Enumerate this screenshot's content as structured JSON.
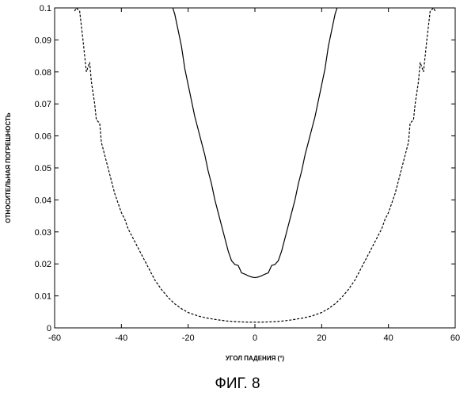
{
  "figure": {
    "caption": "ФИГ. 8"
  },
  "chart_data": {
    "type": "line",
    "title": "",
    "xlabel": "УГОЛ ПАДЕНИЯ (°)",
    "ylabel": "ОТНОСИТЕЛЬНАЯ ПОГРЕШНОСТЬ",
    "xlim": [
      -60,
      60
    ],
    "ylim": [
      0,
      0.1
    ],
    "xticks": [
      -60,
      -40,
      -20,
      0,
      20,
      40,
      60
    ],
    "yticks": [
      0,
      0.01,
      0.02,
      0.03,
      0.04,
      0.05,
      0.06,
      0.07,
      0.08,
      0.09,
      0.1
    ],
    "xtick_labels": [
      "-60",
      "-40",
      "-20",
      "0",
      "20",
      "40",
      "60"
    ],
    "ytick_labels": [
      "0",
      "0.01",
      "0.02",
      "0.03",
      "0.04",
      "0.05",
      "0.06",
      "0.07",
      "0.08",
      "0.09",
      "0.1"
    ],
    "grid": false,
    "legend": "none",
    "series": [
      {
        "style": "solid",
        "color": "#000000",
        "points": [
          [
            -24.6,
            0.1
          ],
          [
            -24,
            0.098
          ],
          [
            -23,
            0.093
          ],
          [
            -22,
            0.088
          ],
          [
            -21,
            0.081
          ],
          [
            -20,
            0.076
          ],
          [
            -19,
            0.071
          ],
          [
            -18,
            0.066
          ],
          [
            -17,
            0.062
          ],
          [
            -16,
            0.058
          ],
          [
            -15,
            0.054
          ],
          [
            -14,
            0.049
          ],
          [
            -13,
            0.045
          ],
          [
            -12,
            0.04
          ],
          [
            -11,
            0.036
          ],
          [
            -10,
            0.032
          ],
          [
            -9,
            0.028
          ],
          [
            -8,
            0.024
          ],
          [
            -7,
            0.021
          ],
          [
            -6,
            0.0198
          ],
          [
            -5,
            0.0195
          ],
          [
            -4,
            0.0172
          ],
          [
            -3,
            0.0168
          ],
          [
            -2,
            0.0163
          ],
          [
            -1,
            0.0159
          ],
          [
            0,
            0.0157
          ],
          [
            1,
            0.0159
          ],
          [
            2,
            0.0163
          ],
          [
            3,
            0.0168
          ],
          [
            4,
            0.0172
          ],
          [
            5,
            0.0195
          ],
          [
            6,
            0.0198
          ],
          [
            7,
            0.021
          ],
          [
            8,
            0.024
          ],
          [
            9,
            0.028
          ],
          [
            10,
            0.032
          ],
          [
            11,
            0.036
          ],
          [
            12,
            0.04
          ],
          [
            13,
            0.045
          ],
          [
            14,
            0.049
          ],
          [
            15,
            0.054
          ],
          [
            16,
            0.058
          ],
          [
            17,
            0.062
          ],
          [
            18,
            0.066
          ],
          [
            19,
            0.071
          ],
          [
            20,
            0.076
          ],
          [
            21,
            0.081
          ],
          [
            22,
            0.088
          ],
          [
            23,
            0.093
          ],
          [
            24,
            0.098
          ],
          [
            24.6,
            0.1
          ]
        ]
      },
      {
        "style": "dashed",
        "color": "#000000",
        "points": [
          [
            -54,
            0.099
          ],
          [
            -53.5,
            0.1
          ],
          [
            -52.5,
            0.099
          ],
          [
            -51.5,
            0.09
          ],
          [
            -51,
            0.085
          ],
          [
            -50.5,
            0.08
          ],
          [
            -49.5,
            0.083
          ],
          [
            -49,
            0.077
          ],
          [
            -48,
            0.07
          ],
          [
            -47.5,
            0.065
          ],
          [
            -46.5,
            0.064
          ],
          [
            -46,
            0.058
          ],
          [
            -45,
            0.054
          ],
          [
            -44,
            0.05
          ],
          [
            -43,
            0.046
          ],
          [
            -42,
            0.042
          ],
          [
            -41,
            0.039
          ],
          [
            -40,
            0.036
          ],
          [
            -39,
            0.034
          ],
          [
            -38,
            0.031
          ],
          [
            -37,
            0.029
          ],
          [
            -36,
            0.027
          ],
          [
            -35,
            0.025
          ],
          [
            -34,
            0.023
          ],
          [
            -33,
            0.021
          ],
          [
            -32,
            0.019
          ],
          [
            -31,
            0.017
          ],
          [
            -30,
            0.015
          ],
          [
            -28,
            0.012
          ],
          [
            -26,
            0.0095
          ],
          [
            -24,
            0.0075
          ],
          [
            -22,
            0.006
          ],
          [
            -20,
            0.0048
          ],
          [
            -17,
            0.0037
          ],
          [
            -14,
            0.003
          ],
          [
            -11,
            0.0025
          ],
          [
            -8,
            0.0021
          ],
          [
            -5,
            0.0019
          ],
          [
            -2,
            0.0018
          ],
          [
            0,
            0.0018
          ],
          [
            2,
            0.0018
          ],
          [
            5,
            0.0019
          ],
          [
            8,
            0.0021
          ],
          [
            11,
            0.0025
          ],
          [
            14,
            0.003
          ],
          [
            17,
            0.0037
          ],
          [
            20,
            0.0048
          ],
          [
            22,
            0.006
          ],
          [
            24,
            0.0075
          ],
          [
            26,
            0.0095
          ],
          [
            28,
            0.012
          ],
          [
            30,
            0.015
          ],
          [
            31,
            0.017
          ],
          [
            32,
            0.019
          ],
          [
            33,
            0.021
          ],
          [
            34,
            0.023
          ],
          [
            35,
            0.025
          ],
          [
            36,
            0.027
          ],
          [
            37,
            0.029
          ],
          [
            38,
            0.031
          ],
          [
            39,
            0.034
          ],
          [
            40,
            0.036
          ],
          [
            41,
            0.039
          ],
          [
            42,
            0.042
          ],
          [
            43,
            0.046
          ],
          [
            44,
            0.05
          ],
          [
            45,
            0.054
          ],
          [
            46,
            0.058
          ],
          [
            46.5,
            0.064
          ],
          [
            47.5,
            0.065
          ],
          [
            48,
            0.07
          ],
          [
            49,
            0.077
          ],
          [
            49.5,
            0.083
          ],
          [
            50.5,
            0.08
          ],
          [
            51,
            0.085
          ],
          [
            51.5,
            0.09
          ],
          [
            52.5,
            0.099
          ],
          [
            53.5,
            0.1
          ],
          [
            54,
            0.099
          ]
        ]
      }
    ]
  }
}
